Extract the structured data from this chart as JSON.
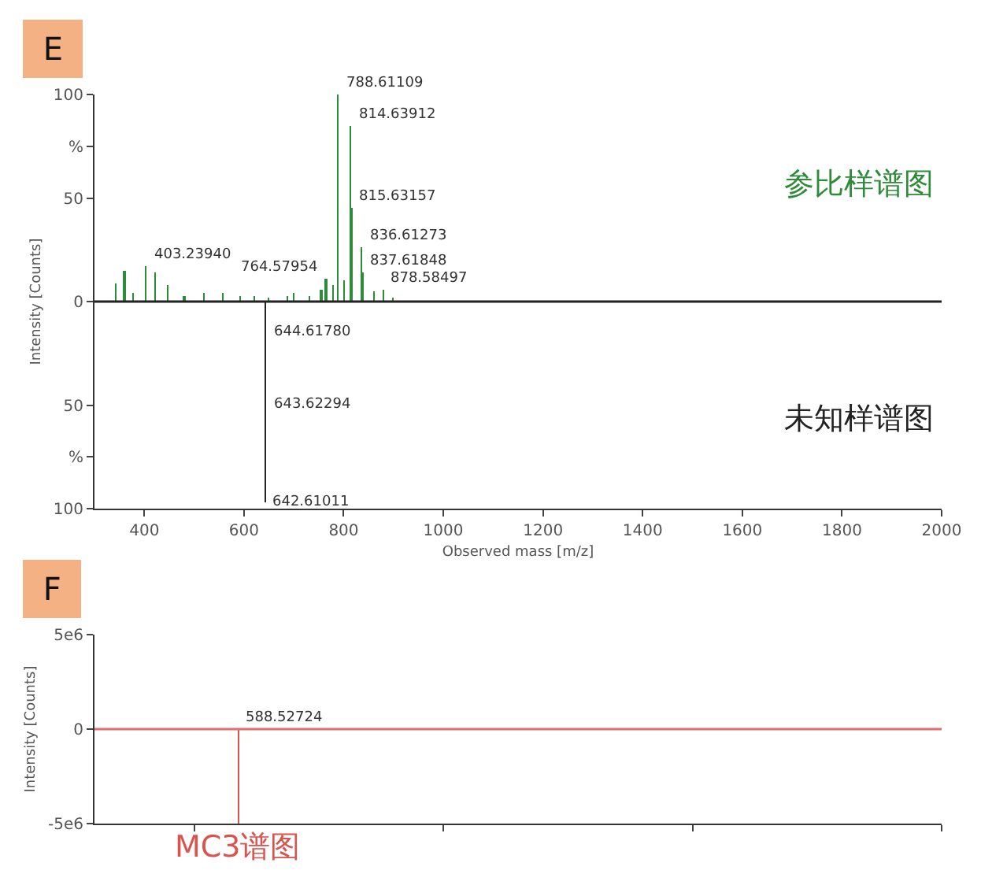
{
  "chart_data": [
    {
      "type": "bar",
      "xlabel": "Observed mass [m/z]",
      "ylabel": "Intensity [Counts]",
      "xlim": [
        300,
        2000
      ],
      "ylim": [
        -100,
        100
      ],
      "xticks": [
        400,
        600,
        800,
        1000,
        1200,
        1400,
        1600,
        1800,
        2000
      ],
      "yticks": [
        {
          "value": -100,
          "label": "100"
        },
        {
          "value": -75,
          "label": "%"
        },
        {
          "value": -50,
          "label": "50"
        },
        0,
        50,
        {
          "value": 75,
          "label": "%"
        },
        100
      ],
      "series": [
        {
          "name": "参比样谱图",
          "color": "#2e8b3a",
          "x": [
            344,
            360,
            378,
            403.2394,
            423,
            447,
            480,
            520,
            557,
            592,
            620,
            650,
            686,
            700,
            730,
            755,
            764.57954,
            780,
            788.61109,
            800,
            814.63912,
            815.63157,
            836.61273,
            837.61848,
            860,
            878.58497,
            900
          ],
          "values": [
            9,
            15,
            4,
            17,
            14,
            8,
            3,
            4,
            4,
            3,
            3,
            2,
            3,
            4,
            3,
            6,
            11,
            8,
            100,
            10,
            85,
            45,
            26,
            14,
            5,
            6,
            2
          ]
        },
        {
          "name": "未知样谱图",
          "color": "#222222",
          "x": [
            642.61011
          ],
          "values": [
            -97
          ]
        }
      ],
      "ref_lines": [
        {
          "axis": "y",
          "value": 0,
          "color": "#222222"
        }
      ],
      "annotations": [
        "E",
        {
          "text": "788.61109",
          "x": 788.61109,
          "y": 100
        },
        {
          "text": "814.63912",
          "x": 814.63912,
          "y": 85
        },
        {
          "text": "815.63157",
          "x": 815.63157,
          "y": 45
        },
        {
          "text": "836.61273",
          "x": 836.61273,
          "y": 26
        },
        {
          "text": "837.61848",
          "x": 837.61848,
          "y": 14
        },
        {
          "text": "764.57954",
          "x": 764.57954,
          "y": 11
        },
        {
          "text": "878.58497",
          "x": 878.58497,
          "y": 6
        },
        {
          "text": "403.23940",
          "x": 403.2394,
          "y": 17
        },
        {
          "text": "644.61780",
          "x": 644.6178,
          "y": -15
        },
        {
          "text": "643.62294",
          "x": 643.62294,
          "y": -50
        },
        {
          "text": "642.61011",
          "x": 642.61011,
          "y": -97
        }
      ]
    },
    {
      "type": "bar",
      "ylabel": "Intensity [Counts]",
      "xlim": [
        300,
        2000
      ],
      "ylim": [
        -5000000,
        5000000
      ],
      "tick_labels": "y",
      "yticks": [
        {
          "value": -5000000,
          "label": "-5e6"
        },
        0,
        {
          "value": 5000000,
          "label": "5e6"
        }
      ],
      "series": [
        {
          "name": "MC3谱图",
          "color": "#d9534f",
          "x": [
            588.52724
          ],
          "values": [
            -5000000
          ]
        }
      ],
      "ref_lines": [
        {
          "axis": "y",
          "value": 0,
          "color": "#e07070"
        }
      ],
      "annotations": [
        "F",
        {
          "text": "588.52724",
          "x": 588.52724,
          "y": 0
        }
      ]
    }
  ]
}
